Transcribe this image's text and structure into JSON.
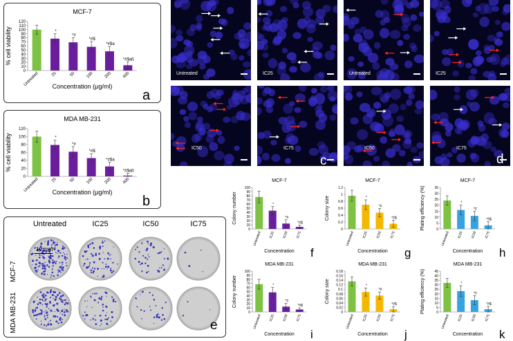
{
  "colors": {
    "untreated": "#7dc242",
    "mda_viability": "#6a1e9e",
    "colony_number": "#6a1e9e",
    "colony_size": "#f5b800",
    "plating_eff": "#36a3e0",
    "microscopy_bg": "#050520",
    "nucleus": "#3a2fd0"
  },
  "chart_data": [
    {
      "id": "a",
      "type": "bar",
      "title": "MCF-7",
      "ylabel": "% cell viability",
      "xlabel": "Concentration (µg/ml)",
      "ylim": [
        0,
        120
      ],
      "yticks": [
        "0",
        "10",
        "20",
        "30",
        "40",
        "50",
        "60",
        "70",
        "80",
        "90",
        "100",
        "110",
        "120"
      ],
      "categories": [
        "Untreated",
        "25",
        "50",
        "100",
        "200",
        "400"
      ],
      "values": [
        100,
        78,
        69,
        58,
        47,
        13
      ],
      "errors": [
        11,
        12,
        11,
        13,
        12,
        8
      ],
      "annotations": [
        "",
        "*",
        "*#",
        "*#$",
        "*#$a",
        "*#$aß"
      ],
      "panel_letter": "a"
    },
    {
      "id": "b",
      "type": "bar",
      "title": "MDA MB-231",
      "ylabel": "% cell viability",
      "xlabel": "Concentration (µg/ml)",
      "ylim": [
        0,
        120
      ],
      "yticks": [
        "0",
        "20",
        "40",
        "60",
        "80",
        "100",
        "120"
      ],
      "categories": [
        "Untreated",
        "25",
        "50",
        "100",
        "200",
        "400"
      ],
      "values": [
        100,
        79,
        62,
        46,
        25,
        2
      ],
      "errors": [
        14,
        12,
        13,
        11,
        11,
        6
      ],
      "annotations": [
        "",
        "*",
        "*#",
        "*#$",
        "*#$a",
        "*#$aß"
      ],
      "panel_letter": "b"
    },
    {
      "id": "f",
      "type": "bar",
      "title": "MCF-7",
      "ylabel": "Colony number",
      "xlabel": "Concentration",
      "ylim": [
        0,
        100
      ],
      "yticks": [
        "0",
        "10",
        "20",
        "30",
        "40",
        "50",
        "60",
        "70",
        "80",
        "90",
        "100"
      ],
      "categories": [
        "Untreated",
        "IC25",
        "IC50",
        "IC75"
      ],
      "values": [
        77,
        44,
        13,
        5
      ],
      "errors": [
        14,
        10,
        9,
        4
      ],
      "annotations": [
        "",
        "*",
        "*#",
        "*#$"
      ],
      "panel_letter": "f"
    },
    {
      "id": "g",
      "type": "bar",
      "title": "MCF-7",
      "ylabel": "Colony size",
      "xlabel": "Concentration",
      "ylim": [
        0,
        1.2
      ],
      "yticks": [
        "0",
        "0.2",
        "0.4",
        "0.6",
        "0.8",
        "1",
        "1.2"
      ],
      "categories": [
        "Untreated",
        "IC25",
        "IC50",
        "IC75"
      ],
      "values": [
        0.96,
        0.7,
        0.47,
        0.15
      ],
      "errors": [
        0.16,
        0.14,
        0.12,
        0.1
      ],
      "annotations": [
        "",
        "*",
        "*#",
        "*#$"
      ],
      "panel_letter": "g"
    },
    {
      "id": "h",
      "type": "bar",
      "title": "MCF-7",
      "ylabel": "Plating efficiency (%)",
      "xlabel": "Concentration",
      "ylim": [
        0,
        35
      ],
      "yticks": [
        "0",
        "5",
        "10",
        "15",
        "20",
        "25",
        "30",
        "35"
      ],
      "categories": [
        "Untreated",
        "IC25",
        "IC50",
        "IC75"
      ],
      "values": [
        24,
        16,
        11,
        3
      ],
      "errors": [
        4,
        4,
        4,
        3
      ],
      "annotations": [
        "",
        "*",
        "*#",
        "*#$"
      ],
      "panel_letter": "h"
    },
    {
      "id": "i",
      "type": "bar",
      "title": "MDA MB-231",
      "ylabel": "Colony number",
      "xlabel": "Concentration",
      "ylim": [
        0,
        100
      ],
      "yticks": [
        "0",
        "10",
        "20",
        "30",
        "40",
        "50",
        "60",
        "70",
        "80",
        "90",
        "100"
      ],
      "categories": [
        "Untreated",
        "IC25",
        "IC50",
        "IC75"
      ],
      "values": [
        68,
        48,
        13,
        6
      ],
      "errors": [
        12,
        12,
        8,
        4
      ],
      "annotations": [
        "",
        "*",
        "*#",
        "*#$"
      ],
      "panel_letter": "i"
    },
    {
      "id": "j",
      "type": "bar",
      "title": "MDA MB-231",
      "ylabel": "Colony size",
      "xlabel": "Concentration",
      "ylim": [
        0,
        0.18
      ],
      "yticks": [
        "0",
        "0.02",
        "0.04",
        "0.06",
        "0.08",
        "0.1",
        "0.12",
        "0.14",
        "0.16",
        "0.18"
      ],
      "categories": [
        "Untreated",
        "IC25",
        "IC50",
        "IC75"
      ],
      "values": [
        0.135,
        0.088,
        0.072,
        0.012
      ],
      "errors": [
        0.02,
        0.018,
        0.016,
        0.012
      ],
      "annotations": [
        "",
        "*",
        "*#",
        "*#$"
      ],
      "panel_letter": "j"
    },
    {
      "id": "k",
      "type": "bar",
      "title": "MDA MB-231",
      "ylabel": "Plating efficiency (%)",
      "xlabel": "Concentration",
      "ylim": [
        0,
        45
      ],
      "yticks": [
        "0",
        "5",
        "10",
        "15",
        "20",
        "25",
        "30",
        "35",
        "40",
        "45"
      ],
      "categories": [
        "Untreated",
        "IC25",
        "IC50",
        "IC75"
      ],
      "values": [
        32,
        23,
        13,
        3
      ],
      "errors": [
        5,
        6,
        5,
        3
      ],
      "annotations": [
        "",
        "*",
        "*#",
        "*#$"
      ],
      "panel_letter": "k"
    }
  ],
  "microscopy": {
    "top_labels": [
      "Untreated",
      "IC25",
      "Untreated",
      "IC25"
    ],
    "bottom_labels": [
      "IC50",
      "IC75",
      "IC50",
      "IC75"
    ],
    "letters": [
      "c",
      "d"
    ]
  },
  "colony_dishes": {
    "columns": [
      "Untreated",
      "IC25",
      "IC50",
      "IC75"
    ],
    "rows": [
      "MCF-7",
      "MDA MB-231"
    ],
    "scale_label": "10 mm",
    "letter": "e"
  }
}
